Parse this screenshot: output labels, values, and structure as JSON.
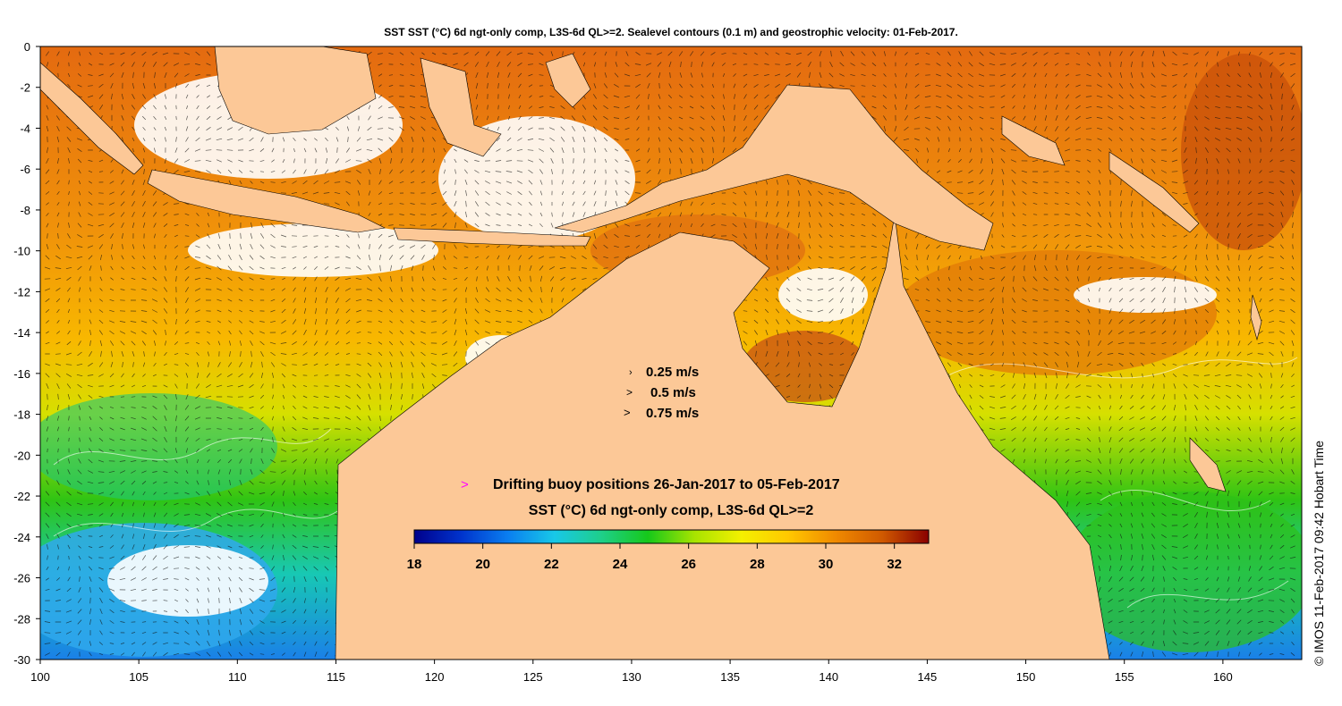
{
  "title": "SST SST (°C) 6d ngt-only comp, L3S-6d QL>=2. Sealevel contours (0.1 m) and geostrophic velocity: 01-Feb-2017.",
  "credit": "© IMOS 11-Feb-2017 09:42 Hobart Time",
  "x_axis": {
    "min": 100,
    "max": 164,
    "ticks": [
      "100",
      "105",
      "110",
      "115",
      "120",
      "125",
      "130",
      "135",
      "140",
      "145",
      "150",
      "155",
      "160"
    ]
  },
  "y_axis": {
    "min": -30,
    "max": 0,
    "ticks": [
      "0",
      "-2",
      "-4",
      "-6",
      "-8",
      "-10",
      "-12",
      "-14",
      "-16",
      "-18",
      "-20",
      "-22",
      "-24",
      "-26",
      "-28",
      "-30"
    ]
  },
  "velocity_legend": {
    "items": [
      {
        "label": "0.25 m/s",
        "glyph": "›"
      },
      {
        "label": "0.5 m/s",
        "glyph": ">"
      },
      {
        "label": "0.75 m/s",
        "glyph": ">"
      }
    ]
  },
  "buoy_legend": {
    "glyph": ">",
    "label": "Drifting buoy positions 26-Jan-2017 to 05-Feb-2017",
    "color": "#ff00ff"
  },
  "colorbar": {
    "title": "SST (°C) 6d ngt-only comp, L3S-6d QL>=2",
    "min": 18,
    "max": 33,
    "tick_labels": [
      "18",
      "20",
      "22",
      "24",
      "26",
      "28",
      "30",
      "32"
    ],
    "colors": [
      "#00008b",
      "#0033cc",
      "#0a7ef0",
      "#18c8e8",
      "#1ecf8a",
      "#16c81a",
      "#a8e400",
      "#f4f000",
      "#ffc800",
      "#f08a00",
      "#d05a00",
      "#8a0000"
    ]
  },
  "colors": {
    "land": "#fcc897",
    "no_data": "#ffffff"
  }
}
